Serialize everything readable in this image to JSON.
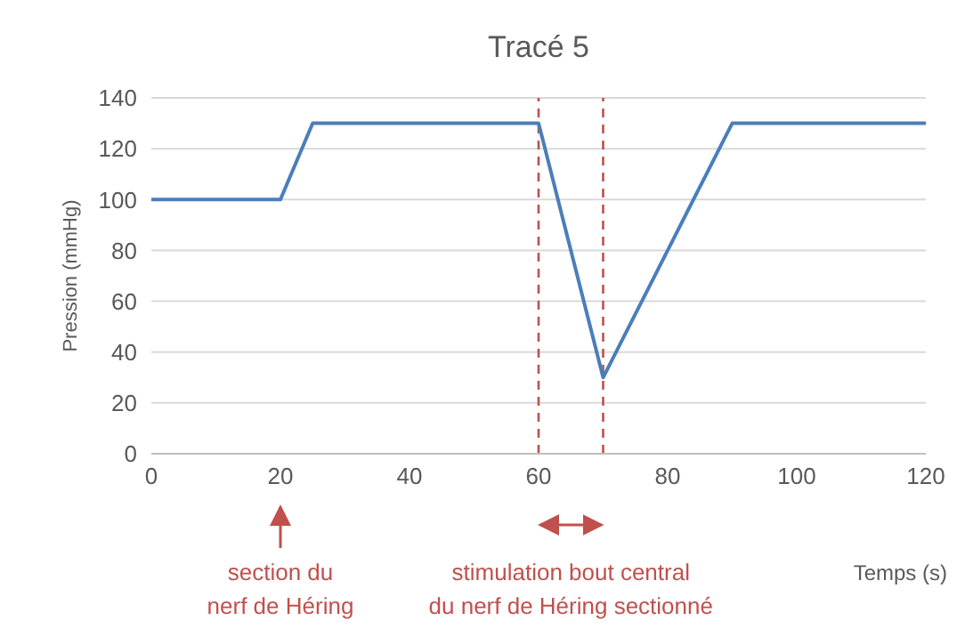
{
  "chart_data": {
    "type": "line",
    "title": "Tracé 5",
    "xlabel": "Temps (s)",
    "ylabel": "Pression (mmHg)",
    "x": [
      0,
      20,
      25,
      60,
      70,
      90,
      120
    ],
    "series": [
      {
        "color": "#4a7ebb",
        "values": [
          100,
          100,
          130,
          130,
          30,
          130,
          130
        ]
      }
    ],
    "xlim": [
      0,
      120
    ],
    "xticks": [
      0,
      20,
      40,
      60,
      80,
      100,
      120
    ],
    "ylim": [
      0,
      140
    ],
    "yticks": [
      0,
      20,
      40,
      60,
      80,
      100,
      120,
      140
    ],
    "grid": "y",
    "marker": "none",
    "line_style": "solid",
    "legend": false,
    "ref_lines": [
      {
        "axis": "x",
        "value": 60,
        "color": "#c0504d",
        "line_style": "dashed"
      },
      {
        "axis": "x",
        "value": 70,
        "color": "#c0504d",
        "line_style": "dashed"
      }
    ],
    "annotations": [
      {
        "text": "section du nerf de Héring",
        "x": 20
      },
      "stimulation bout central du nerf de Héring sectionné"
    ]
  }
}
